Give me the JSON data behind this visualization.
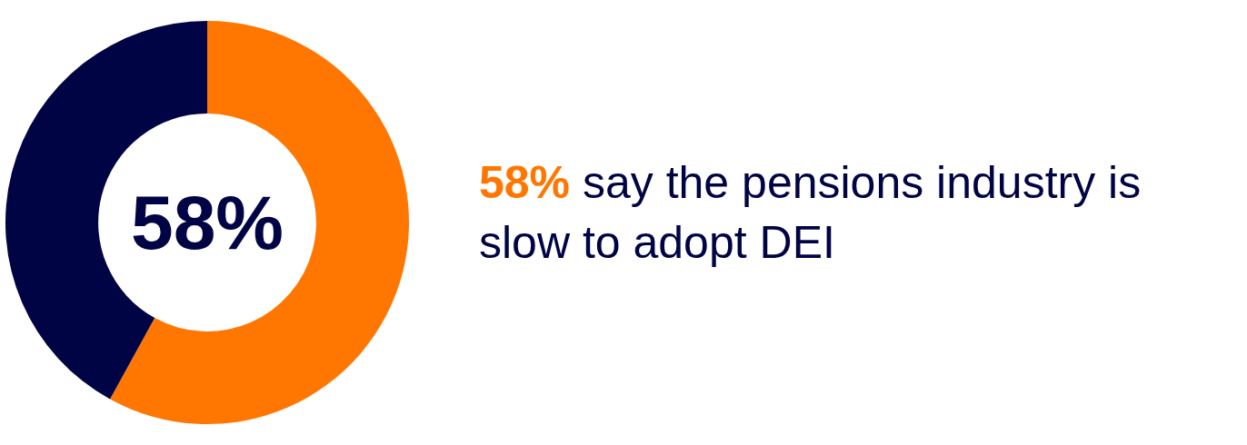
{
  "chart_data": {
    "type": "donut",
    "categories": [
      null,
      null
    ],
    "values": [
      58,
      42
    ],
    "colors": [
      "#ff7700",
      "#000444"
    ],
    "legend": false,
    "annotations": [
      "58%",
      "58% say the pensions industry is slow to adopt DEI"
    ]
  }
}
